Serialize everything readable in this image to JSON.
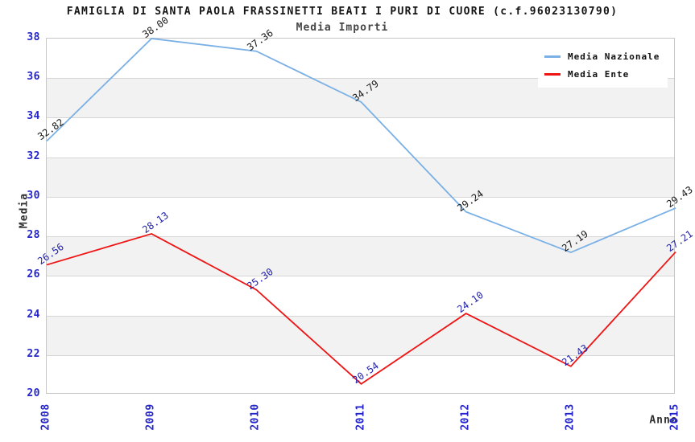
{
  "chart_data": {
    "type": "line",
    "title": "FAMIGLIA DI SANTA PAOLA FRASSINETTI BEATI I PURI DI CUORE (c.f.96023130790)",
    "subtitle": "Media Importi",
    "xlabel": "Anno",
    "ylabel": "Media",
    "categories": [
      "2008",
      "2009",
      "2010",
      "2011",
      "2012",
      "2013",
      "2015"
    ],
    "series": [
      {
        "name": "Media Nazionale",
        "color": "#7ab0e6",
        "label_color": "#1a1a1a",
        "values": [
          32.82,
          38.0,
          37.36,
          34.79,
          29.24,
          27.19,
          29.43
        ]
      },
      {
        "name": "Media Ente",
        "color": "#ee1414",
        "label_color": "#2323aa",
        "values": [
          26.56,
          28.13,
          25.3,
          20.54,
          24.1,
          21.43,
          27.21
        ]
      }
    ],
    "ylim": [
      20,
      38
    ],
    "ytick_step": 2,
    "grid": true,
    "legend_position": "top-right",
    "styles": {
      "axis_tick_color": "#2424cc",
      "band_color": "#f2f2f2",
      "grid_color": "#d6d6d6",
      "border_color": "#c6c6c6"
    }
  }
}
